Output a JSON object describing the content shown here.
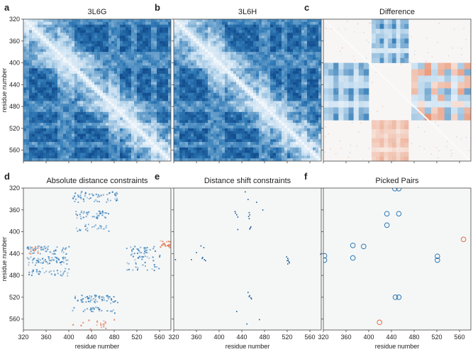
{
  "figure": {
    "axis_label_x": "residue number",
    "axis_label_y": "residue number"
  },
  "colors": {
    "blue": "#2f79b5",
    "dark_blue": "#1f5a94",
    "red": "#e06a3f",
    "background": "#f5f7f7"
  },
  "chart_data": [
    {
      "panel": "a",
      "title": "3L6G",
      "type": "heatmap",
      "description_kind": "distance-matrix",
      "xlim": [
        320,
        580
      ],
      "ylim": [
        320,
        580
      ],
      "x_ticks": [
        320,
        360,
        400,
        440,
        480,
        520,
        560
      ],
      "y_ticks": [
        320,
        360,
        400,
        440,
        480,
        520,
        560
      ],
      "show_x_tick_labels": false,
      "show_y_tick_labels": true,
      "show_xlabel": false,
      "show_ylabel": true,
      "blocks": [
        [
          330,
          380
        ],
        [
          410,
          470
        ],
        [
          490,
          510
        ],
        [
          520,
          545
        ],
        [
          555,
          575
        ]
      ]
    },
    {
      "panel": "b",
      "title": "3L6H",
      "type": "heatmap",
      "description_kind": "distance-matrix",
      "xlim": [
        320,
        580
      ],
      "ylim": [
        320,
        580
      ],
      "x_ticks": [
        320,
        360,
        400,
        440,
        480,
        520,
        560
      ],
      "y_ticks": [
        320,
        360,
        400,
        440,
        480,
        520,
        560
      ],
      "show_x_tick_labels": false,
      "show_y_tick_labels": false,
      "show_xlabel": false,
      "show_ylabel": false,
      "blocks": [
        [
          330,
          380
        ],
        [
          410,
          470
        ],
        [
          490,
          510
        ],
        [
          520,
          545
        ],
        [
          555,
          575
        ]
      ]
    },
    {
      "panel": "c",
      "title": "Difference",
      "type": "heatmap",
      "description_kind": "difference-matrix",
      "xlim": [
        320,
        580
      ],
      "ylim": [
        320,
        580
      ],
      "x_ticks": [
        320,
        360,
        400,
        440,
        480,
        520,
        560
      ],
      "y_ticks": [
        320,
        360,
        400,
        440,
        480,
        520,
        560
      ],
      "show_x_tick_labels": false,
      "show_y_tick_labels": false,
      "show_xlabel": false,
      "show_ylabel": false,
      "regions": [
        {
          "x": [
            405,
            470
          ],
          "y": [
            320,
            400
          ],
          "sign": "neg"
        },
        {
          "x": [
            320,
            400
          ],
          "y": [
            400,
            505
          ],
          "sign": "neg"
        },
        {
          "x": [
            475,
            580
          ],
          "y": [
            400,
            505
          ],
          "sign": "mix"
        },
        {
          "x": [
            405,
            470
          ],
          "y": [
            505,
            580
          ],
          "sign": "pos"
        }
      ]
    },
    {
      "panel": "d",
      "title": "Absolute distance constraints",
      "type": "scatter",
      "xlim": [
        320,
        580
      ],
      "ylim": [
        320,
        580
      ],
      "x_ticks": [
        320,
        360,
        400,
        440,
        480,
        520,
        560
      ],
      "y_ticks": [
        320,
        360,
        400,
        440,
        480,
        520,
        560
      ],
      "show_x_tick_labels": true,
      "show_y_tick_labels": true,
      "show_xlabel": true,
      "show_ylabel": true,
      "clusters": [
        {
          "x": [
            405,
            485
          ],
          "y": [
            325,
            345
          ],
          "sign": "neg",
          "n": 60
        },
        {
          "x": [
            410,
            470
          ],
          "y": [
            360,
            375
          ],
          "sign": "neg",
          "n": 40
        },
        {
          "x": [
            410,
            470
          ],
          "y": [
            385,
            398
          ],
          "sign": "neg",
          "n": 25
        },
        {
          "x": [
            325,
            400
          ],
          "y": [
            425,
            440
          ],
          "sign": "neg",
          "n": 50
        },
        {
          "x": [
            325,
            400
          ],
          "y": [
            445,
            460
          ],
          "sign": "neg",
          "n": 60
        },
        {
          "x": [
            325,
            400
          ],
          "y": [
            465,
            480
          ],
          "sign": "neg",
          "n": 35
        },
        {
          "x": [
            500,
            560
          ],
          "y": [
            425,
            470
          ],
          "sign": "neg",
          "n": 70
        },
        {
          "x": [
            405,
            485
          ],
          "y": [
            515,
            530
          ],
          "sign": "neg",
          "n": 60
        },
        {
          "x": [
            405,
            480
          ],
          "y": [
            535,
            548
          ],
          "sign": "neg",
          "n": 25
        },
        {
          "x": [
            560,
            580
          ],
          "y": [
            415,
            428
          ],
          "sign": "pos",
          "n": 25
        },
        {
          "x": [
            405,
            480
          ],
          "y": [
            560,
            580
          ],
          "sign": "pos",
          "n": 20
        },
        {
          "x": [
            325,
            345
          ],
          "y": [
            425,
            440
          ],
          "sign": "pos",
          "n": 10
        }
      ]
    },
    {
      "panel": "e",
      "title": "Distance shift constraints",
      "type": "scatter",
      "xlim": [
        320,
        580
      ],
      "ylim": [
        320,
        580
      ],
      "x_ticks": [
        320,
        360,
        400,
        440,
        480,
        520,
        560
      ],
      "y_ticks": [
        320,
        360,
        400,
        440,
        480,
        520,
        560
      ],
      "show_x_tick_labels": true,
      "show_y_tick_labels": false,
      "show_xlabel": true,
      "show_ylabel": false,
      "points": [
        [
          428,
          365
        ],
        [
          430,
          368
        ],
        [
          432,
          372
        ],
        [
          427,
          362
        ],
        [
          452,
          364
        ],
        [
          453,
          368
        ],
        [
          451,
          371
        ],
        [
          452,
          375
        ],
        [
          455,
          390
        ],
        [
          454,
          392
        ],
        [
          453,
          394
        ],
        [
          445,
          326
        ],
        [
          450,
          340
        ],
        [
          465,
          345
        ],
        [
          476,
          359
        ],
        [
          432,
          395
        ],
        [
          367,
          425
        ],
        [
          372,
          428
        ],
        [
          369,
          448
        ],
        [
          373,
          450
        ],
        [
          375,
          452
        ],
        [
          370,
          446
        ],
        [
          350,
          450
        ],
        [
          359,
          437
        ],
        [
          520,
          448
        ],
        [
          521,
          451
        ],
        [
          522,
          454
        ],
        [
          519,
          452
        ],
        [
          523,
          456
        ],
        [
          520,
          458
        ],
        [
          518,
          445
        ],
        [
          452,
          518
        ],
        [
          455,
          520
        ],
        [
          456,
          522
        ],
        [
          453,
          516
        ],
        [
          450,
          510
        ],
        [
          578,
          440
        ],
        [
          322,
          450
        ],
        [
          448,
          568
        ],
        [
          430,
          545
        ],
        [
          470,
          560
        ]
      ]
    },
    {
      "panel": "f",
      "title": "Picked Pairs",
      "type": "scatter",
      "xlim": [
        320,
        580
      ],
      "ylim": [
        320,
        580
      ],
      "x_ticks": [
        320,
        360,
        400,
        440,
        480,
        520,
        560
      ],
      "y_ticks": [
        320,
        360,
        400,
        440,
        480,
        520,
        560
      ],
      "show_x_tick_labels": true,
      "show_y_tick_labels": false,
      "show_xlabel": true,
      "show_ylabel": false,
      "points": [
        {
          "x": 446,
          "y": 321,
          "sign": "neg"
        },
        {
          "x": 453,
          "y": 321,
          "sign": "neg"
        },
        {
          "x": 432,
          "y": 367,
          "sign": "neg"
        },
        {
          "x": 453,
          "y": 367,
          "sign": "neg"
        },
        {
          "x": 432,
          "y": 388,
          "sign": "neg"
        },
        {
          "x": 372,
          "y": 425,
          "sign": "neg"
        },
        {
          "x": 391,
          "y": 427,
          "sign": "neg"
        },
        {
          "x": 372,
          "y": 448,
          "sign": "neg"
        },
        {
          "x": 322,
          "y": 444,
          "sign": "neg"
        },
        {
          "x": 322,
          "y": 452,
          "sign": "neg"
        },
        {
          "x": 521,
          "y": 445,
          "sign": "neg"
        },
        {
          "x": 521,
          "y": 452,
          "sign": "neg"
        },
        {
          "x": 447,
          "y": 520,
          "sign": "neg"
        },
        {
          "x": 453,
          "y": 520,
          "sign": "neg"
        },
        {
          "x": 567,
          "y": 414,
          "sign": "pos"
        },
        {
          "x": 419,
          "y": 566,
          "sign": "pos"
        }
      ]
    }
  ]
}
